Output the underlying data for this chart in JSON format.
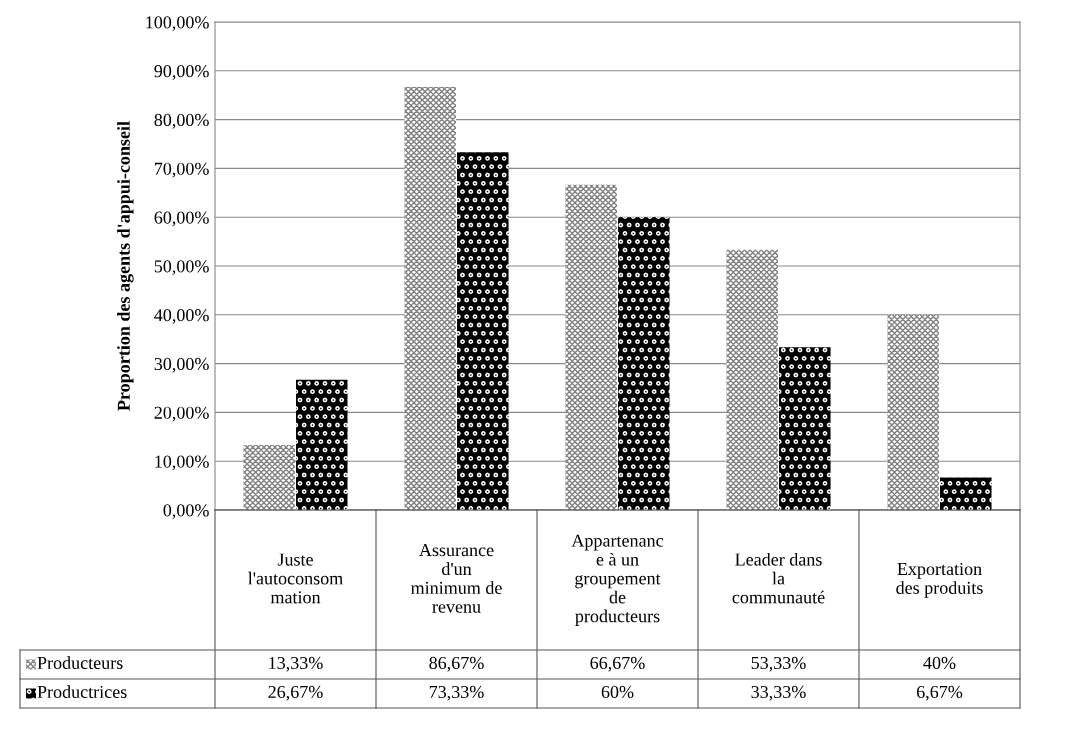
{
  "chart_data": {
    "type": "bar",
    "ylabel": "Proportion des agents d'appui-conseil",
    "categories": [
      "Juste\nl'autoconsom\nmation",
      "Assurance\nd'un\nminimum de\nrevenu",
      "Appartenanc\ne à un\ngroupement\nde\nproducteurs",
      "Leader dans\nla\ncommunauté",
      "Exportation\ndes produits"
    ],
    "series": [
      {
        "name": "Producteurs",
        "color": "#808080",
        "values": [
          13.33,
          86.67,
          66.67,
          53.33,
          40
        ],
        "value_labels": [
          "13,33%",
          "86,67%",
          "66,67%",
          "53,33%",
          "40%"
        ]
      },
      {
        "name": "Productrices",
        "color": "#000000",
        "values": [
          26.67,
          73.33,
          60,
          33.33,
          6.67
        ],
        "value_labels": [
          "26,67%",
          "73,33%",
          "60%",
          "33,33%",
          "6,67%"
        ]
      }
    ],
    "ylim": [
      0,
      100
    ],
    "yticks": [
      {
        "value": 0,
        "label": "0,00%"
      },
      {
        "value": 10,
        "label": "10,00%"
      },
      {
        "value": 20,
        "label": "20,00%"
      },
      {
        "value": 30,
        "label": "30,00%"
      },
      {
        "value": 40,
        "label": "40,00%"
      },
      {
        "value": 50,
        "label": "50,00%"
      },
      {
        "value": 60,
        "label": "60,00%"
      },
      {
        "value": 70,
        "label": "70,00%"
      },
      {
        "value": 80,
        "label": "80,00%"
      },
      {
        "value": 90,
        "label": "90,00%"
      },
      {
        "value": 100,
        "label": "100,00%"
      }
    ],
    "grid": "y",
    "legend": "bottom"
  }
}
